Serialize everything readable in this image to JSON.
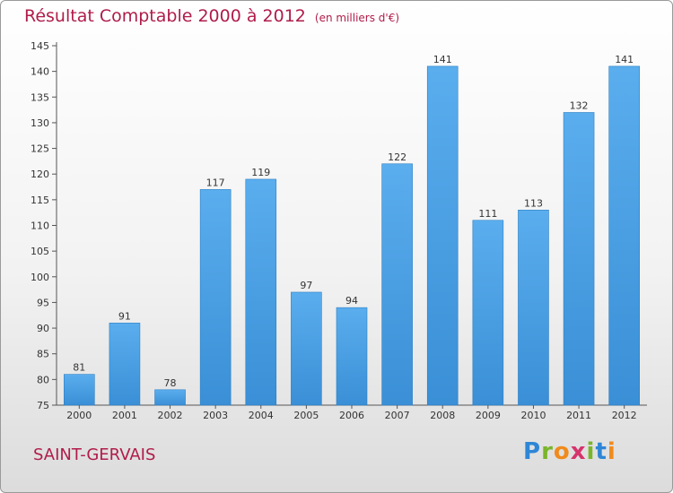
{
  "chart_data": {
    "type": "bar",
    "title": "Résultat Comptable 2000 à 2012",
    "subtitle": "(en milliers d'€)",
    "categories": [
      "2000",
      "2001",
      "2002",
      "2003",
      "2004",
      "2005",
      "2006",
      "2007",
      "2008",
      "2009",
      "2010",
      "2011",
      "2012"
    ],
    "values": [
      81,
      91,
      78,
      117,
      119,
      97,
      94,
      122,
      141,
      111,
      113,
      132,
      141
    ],
    "yticks": [
      75,
      80,
      85,
      90,
      95,
      100,
      105,
      110,
      115,
      120,
      125,
      130,
      135,
      140,
      145
    ],
    "ylim": [
      75,
      145
    ],
    "xlabel": "",
    "ylabel": "",
    "grid": false,
    "bar_color": "#3a8fd6",
    "title_color": "#b01c4a"
  },
  "footer": {
    "commune": "SAINT-GERVAIS",
    "logo": {
      "letters": [
        "P",
        "r",
        "o",
        "x",
        "i",
        "t",
        "i"
      ],
      "colors": [
        "#2e86d6",
        "#7bb52b",
        "#f08a1c",
        "#d6336c",
        "#7bb52b",
        "#2e86d6",
        "#f08a1c"
      ]
    }
  }
}
